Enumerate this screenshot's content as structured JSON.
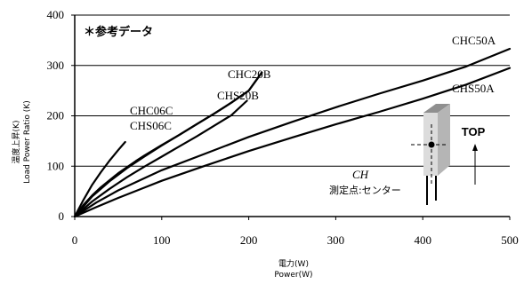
{
  "chart_data": {
    "type": "line",
    "title": "",
    "note": "＊参考データ",
    "xlabel_jp": "電力(W)",
    "xlabel_en": "Power(W)",
    "ylabel_jp": "温度上昇(K)",
    "ylabel_en": "Load Power Ratio (K)",
    "xlim": [
      0,
      500
    ],
    "ylim": [
      0,
      400
    ],
    "x_ticks": [
      "0",
      "100",
      "200",
      "300",
      "400",
      "500"
    ],
    "y_ticks": [
      "0",
      "100",
      "200",
      "300",
      "400"
    ],
    "grid": "horizontal",
    "series": [
      {
        "name": "CHS06C",
        "x": [
          0,
          10,
          20,
          30,
          40,
          50,
          58
        ],
        "y": [
          0,
          33,
          63,
          88,
          111,
          132,
          148
        ]
      },
      {
        "name": "CHC06C",
        "x": [
          0,
          10,
          20,
          30,
          40,
          50,
          60,
          70,
          80,
          100,
          120,
          140,
          160,
          180,
          200,
          215
        ],
        "y": [
          0,
          23,
          42,
          58,
          72,
          86,
          98,
          110,
          121,
          142,
          162,
          183,
          204,
          226,
          250,
          286
        ]
      },
      {
        "name": "CHC20B",
        "x": [
          0,
          20,
          40,
          60,
          80,
          100,
          120,
          140,
          160,
          180,
          200,
          215
        ],
        "y": [
          0,
          40,
          70,
          96,
          119,
          141,
          162,
          183,
          204,
          226,
          250,
          286
        ]
      },
      {
        "name": "CHS20B",
        "x": [
          0,
          20,
          40,
          60,
          80,
          100,
          120,
          140,
          160,
          180,
          198
        ],
        "y": [
          0,
          30,
          55,
          78,
          99,
          119,
          139,
          159,
          180,
          201,
          230
        ]
      },
      {
        "name": "CHC50A",
        "x": [
          0,
          25,
          50,
          75,
          100,
          150,
          200,
          250,
          300,
          350,
          400,
          450,
          500
        ],
        "y": [
          0,
          28,
          52,
          72,
          92,
          125,
          158,
          188,
          217,
          244,
          270,
          298,
          333
        ]
      },
      {
        "name": "CHS50A",
        "x": [
          0,
          25,
          50,
          75,
          100,
          150,
          200,
          250,
          300,
          350,
          400,
          450,
          500
        ],
        "y": [
          0,
          19,
          37,
          54,
          71,
          101,
          130,
          157,
          183,
          208,
          234,
          262,
          295
        ]
      }
    ],
    "inset": {
      "label_ch": "CH",
      "label_point": "測定点:センター",
      "label_top": "TOP"
    }
  }
}
